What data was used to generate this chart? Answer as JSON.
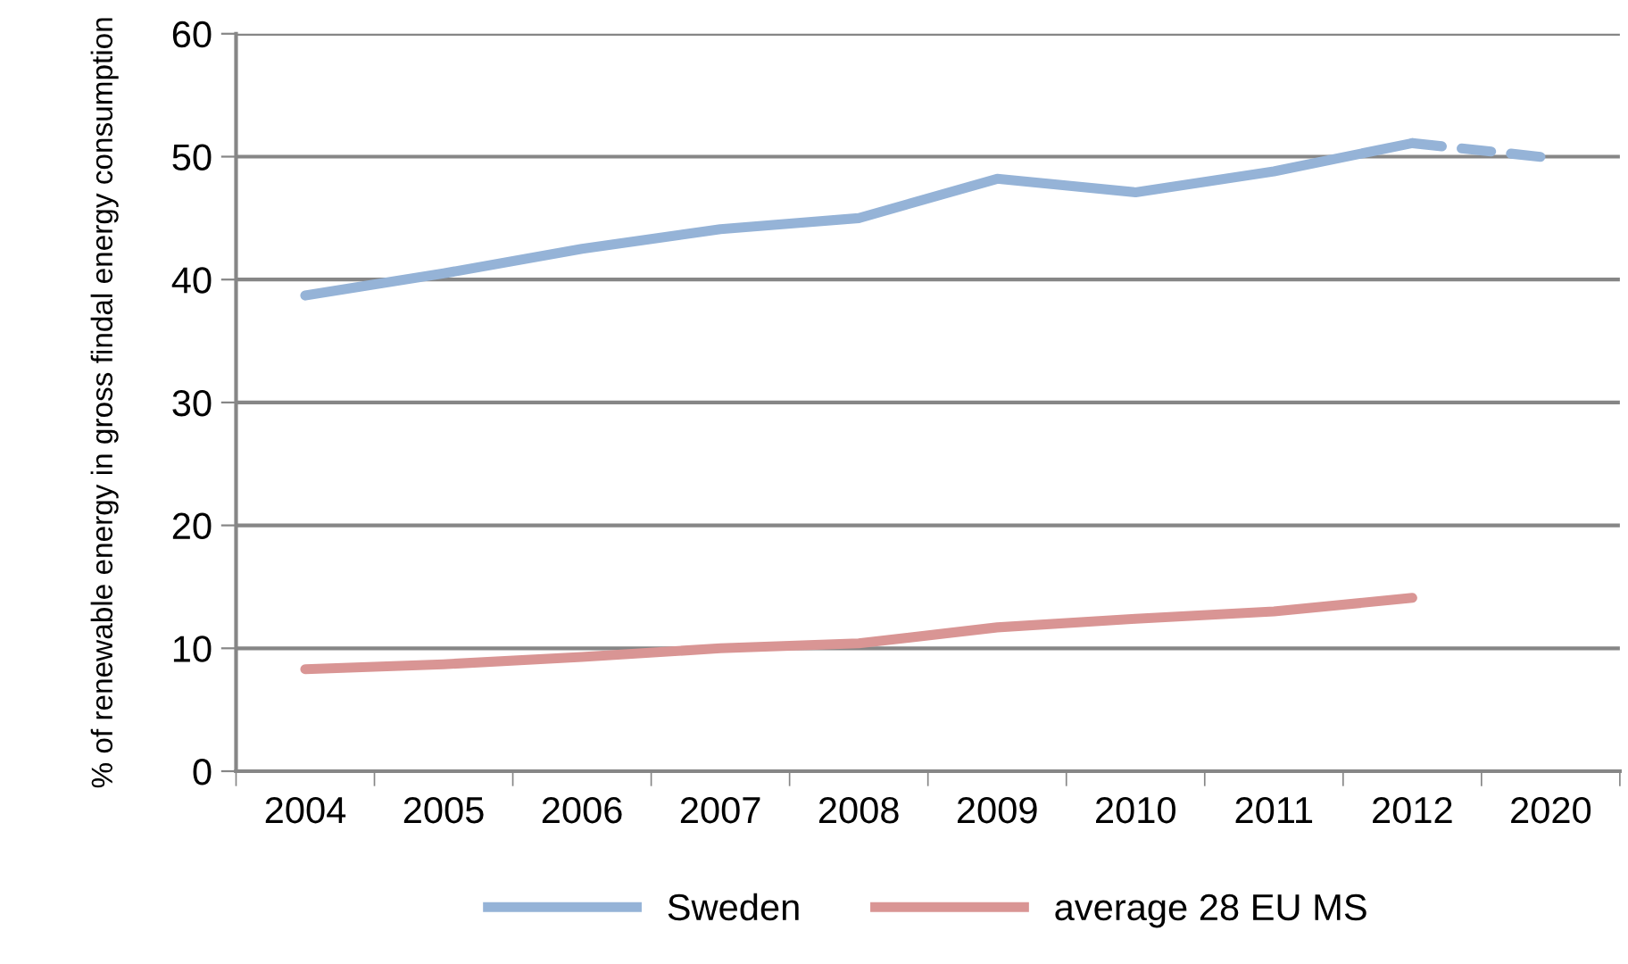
{
  "chart_data": {
    "type": "line",
    "ylabel": "% of renewable energy in gross findal energy consumption",
    "categories": [
      "2004",
      "2005",
      "2006",
      "2007",
      "2008",
      "2009",
      "2010",
      "2011",
      "2012",
      "2020"
    ],
    "series": [
      {
        "name": "Sweden",
        "color": "#95b3d7",
        "values": [
          38.7,
          40.5,
          42.5,
          44.1,
          45.0,
          48.2,
          47.1,
          48.8,
          51.1,
          null
        ]
      },
      {
        "color": "#95b3d7",
        "line_style": "dashed",
        "values": [
          null,
          null,
          null,
          null,
          null,
          null,
          null,
          null,
          51.1,
          49.9
        ]
      },
      {
        "name": "average 28 EU MS",
        "color": "#d99594",
        "values": [
          8.3,
          8.7,
          9.3,
          10.0,
          10.4,
          11.7,
          12.4,
          13.0,
          14.1,
          null
        ]
      }
    ],
    "ylim": [
      0,
      60
    ],
    "yticks": [
      0,
      10,
      20,
      30,
      40,
      50,
      60
    ],
    "grid": "y",
    "legend": "bottom",
    "line_style": "solid",
    "marker": "none"
  }
}
